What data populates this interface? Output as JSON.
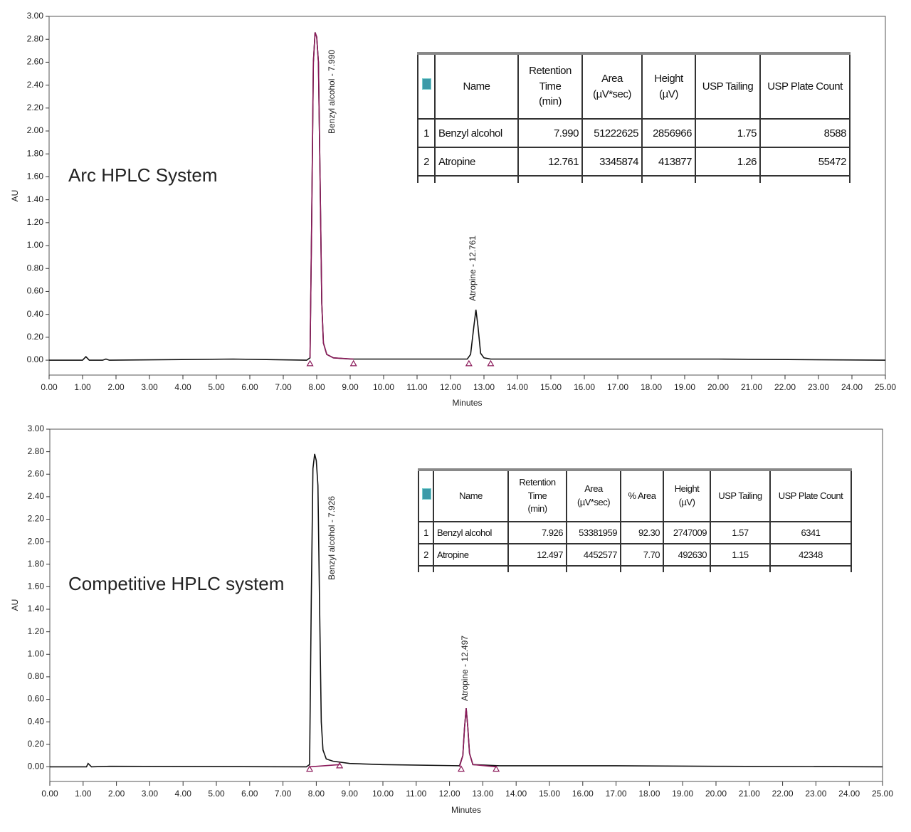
{
  "chart_data": [
    {
      "type": "line",
      "ylabel": "AU",
      "xlabel": "Minutes",
      "annotation": "Arc HPLC System",
      "xlim": [
        0,
        25
      ],
      "ylim": [
        -0.13,
        3.0
      ],
      "xticks": [
        {
          "value": 0,
          "label": "0.00"
        },
        {
          "value": 1,
          "label": "1.00"
        },
        {
          "value": 2,
          "label": "2.00"
        },
        {
          "value": 3,
          "label": "3.00"
        },
        {
          "value": 4,
          "label": "4.00"
        },
        {
          "value": 5,
          "label": "5.00"
        },
        {
          "value": 6,
          "label": "6.00"
        },
        {
          "value": 7,
          "label": "7.00"
        },
        {
          "value": 8,
          "label": "8.00"
        },
        {
          "value": 9,
          "label": "9.00"
        },
        {
          "value": 10,
          "label": "10.00"
        },
        {
          "value": 11,
          "label": "11.00"
        },
        {
          "value": 12,
          "label": "12.00"
        },
        {
          "value": 13,
          "label": "13.00"
        },
        {
          "value": 14,
          "label": "14.00"
        },
        {
          "value": 15,
          "label": "15.00"
        },
        {
          "value": 16,
          "label": "16.00"
        },
        {
          "value": 17,
          "label": "17.00"
        },
        {
          "value": 18,
          "label": "18.00"
        },
        {
          "value": 19,
          "label": "19.00"
        },
        {
          "value": 20,
          "label": "20.00"
        },
        {
          "value": 21,
          "label": "21.00"
        },
        {
          "value": 22,
          "label": "22.00"
        },
        {
          "value": 23,
          "label": "23.00"
        },
        {
          "value": 24,
          "label": "24.00"
        },
        {
          "value": 25,
          "label": "25.00"
        }
      ],
      "yticks": [
        {
          "value": 0,
          "label": "0.00"
        },
        {
          "value": 0.2,
          "label": "0.20"
        },
        {
          "value": 0.4,
          "label": "0.40"
        },
        {
          "value": 0.6,
          "label": "0.60"
        },
        {
          "value": 0.8,
          "label": "0.80"
        },
        {
          "value": 1,
          "label": "1.00"
        },
        {
          "value": 1.2,
          "label": "1.20"
        },
        {
          "value": 1.4,
          "label": "1.40"
        },
        {
          "value": 1.6,
          "label": "1.60"
        },
        {
          "value": 1.8,
          "label": "1.80"
        },
        {
          "value": 2,
          "label": "2.00"
        },
        {
          "value": 2.2,
          "label": "2.20"
        },
        {
          "value": 2.4,
          "label": "2.40"
        },
        {
          "value": 2.6,
          "label": "2.60"
        },
        {
          "value": 2.8,
          "label": "2.80"
        },
        {
          "value": 3,
          "label": "3.00"
        }
      ],
      "series": [
        {
          "color": "#111111",
          "x": [
            0,
            1.0,
            1.1,
            1.2,
            1.6,
            1.7,
            1.8,
            5.5,
            7.7,
            7.8,
            7.85,
            7.9,
            7.95,
            8.0,
            8.05,
            8.1,
            8.15,
            8.2,
            8.3,
            8.5,
            9.0,
            12.5,
            12.6,
            12.7,
            12.76,
            12.82,
            12.9,
            13.0,
            13.2,
            15.0,
            20.0,
            25.0
          ],
          "values": [
            0,
            0,
            0.03,
            0,
            0,
            0.01,
            0,
            0.01,
            0,
            0.02,
            1.2,
            2.6,
            2.86,
            2.82,
            2.6,
            1.6,
            0.5,
            0.15,
            0.05,
            0.02,
            0.01,
            0.01,
            0.05,
            0.3,
            0.44,
            0.3,
            0.06,
            0.02,
            0.01,
            0.01,
            0.01,
            0
          ]
        },
        {
          "color": "#8b1a5a",
          "x": [
            7.8,
            7.85,
            7.9,
            7.95,
            8.0,
            8.05,
            8.1,
            8.15,
            8.2,
            8.3,
            8.5,
            9.1
          ],
          "values": [
            0.02,
            1.2,
            2.6,
            2.86,
            2.82,
            2.6,
            1.6,
            0.5,
            0.15,
            0.05,
            0.02,
            0.01
          ]
        }
      ],
      "markers": {
        "color": "#8b1a5a",
        "x": [
          7.8,
          9.1,
          12.55,
          13.2
        ],
        "values": [
          -0.03,
          -0.03,
          -0.03,
          -0.03
        ]
      },
      "peak_labels": [
        "Benzyl alcohol - 7.990",
        "Atropine - 12.761"
      ],
      "table": {
        "columns": [
          [
            "Name"
          ],
          [
            "Retention",
            "Time",
            "(min)"
          ],
          [
            "Area",
            "(µV*sec)"
          ],
          [
            "Height",
            "(µV)"
          ],
          [
            "USP Tailing"
          ],
          [
            "USP Plate Count"
          ]
        ],
        "rows": [
          [
            "1",
            "Benzyl alcohol",
            "7.990",
            "51222625",
            "2856966",
            "1.75",
            "8588"
          ],
          [
            "2",
            "Atropine",
            "12.761",
            "3345874",
            "413877",
            "1.26",
            "55472"
          ]
        ]
      }
    },
    {
      "type": "line",
      "ylabel": "AU",
      "xlabel": "Minutes",
      "annotation": "Competitive HPLC system",
      "xlim": [
        0,
        25
      ],
      "ylim": [
        -0.13,
        3.0
      ],
      "xticks": [
        {
          "value": 0,
          "label": "0.00"
        },
        {
          "value": 1,
          "label": "1.00"
        },
        {
          "value": 2,
          "label": "2.00"
        },
        {
          "value": 3,
          "label": "3.00"
        },
        {
          "value": 4,
          "label": "4.00"
        },
        {
          "value": 5,
          "label": "5.00"
        },
        {
          "value": 6,
          "label": "6.00"
        },
        {
          "value": 7,
          "label": "7.00"
        },
        {
          "value": 8,
          "label": "8.00"
        },
        {
          "value": 9,
          "label": "9.00"
        },
        {
          "value": 10,
          "label": "10.00"
        },
        {
          "value": 11,
          "label": "11.00"
        },
        {
          "value": 12,
          "label": "12.00"
        },
        {
          "value": 13,
          "label": "13.00"
        },
        {
          "value": 14,
          "label": "14.00"
        },
        {
          "value": 15,
          "label": "15.00"
        },
        {
          "value": 16,
          "label": "16.00"
        },
        {
          "value": 17,
          "label": "17.00"
        },
        {
          "value": 18,
          "label": "18.00"
        },
        {
          "value": 19,
          "label": "19.00"
        },
        {
          "value": 20,
          "label": "20.00"
        },
        {
          "value": 21,
          "label": "21.00"
        },
        {
          "value": 22,
          "label": "22.00"
        },
        {
          "value": 23,
          "label": "23.00"
        },
        {
          "value": 24,
          "label": "24.00"
        },
        {
          "value": 25,
          "label": "25.00"
        }
      ],
      "yticks": [
        {
          "value": 0,
          "label": "0.00"
        },
        {
          "value": 0.2,
          "label": "0.20"
        },
        {
          "value": 0.4,
          "label": "0.40"
        },
        {
          "value": 0.6,
          "label": "0.60"
        },
        {
          "value": 0.8,
          "label": "0.80"
        },
        {
          "value": 1,
          "label": "1.00"
        },
        {
          "value": 1.2,
          "label": "1.20"
        },
        {
          "value": 1.4,
          "label": "1.40"
        },
        {
          "value": 1.6,
          "label": "1.60"
        },
        {
          "value": 1.8,
          "label": "1.80"
        },
        {
          "value": 2,
          "label": "2.00"
        },
        {
          "value": 2.2,
          "label": "2.20"
        },
        {
          "value": 2.4,
          "label": "2.40"
        },
        {
          "value": 2.6,
          "label": "2.60"
        },
        {
          "value": 2.8,
          "label": "2.80"
        },
        {
          "value": 3,
          "label": "3.00"
        }
      ],
      "series": [
        {
          "color": "#111111",
          "x": [
            0,
            1.1,
            1.15,
            1.25,
            1.8,
            7.7,
            7.8,
            7.85,
            7.9,
            7.95,
            8.0,
            8.05,
            8.1,
            8.15,
            8.2,
            8.3,
            8.5,
            9.0,
            10.0,
            12.3,
            12.4,
            12.45,
            12.5,
            12.55,
            12.6,
            12.7,
            13.5,
            17.0,
            20.0,
            25.0
          ],
          "values": [
            0,
            0,
            0.03,
            0,
            0.005,
            0,
            0.02,
            1.5,
            2.65,
            2.78,
            2.72,
            2.5,
            1.4,
            0.4,
            0.15,
            0.07,
            0.05,
            0.03,
            0.02,
            0.01,
            0.1,
            0.35,
            0.52,
            0.35,
            0.12,
            0.02,
            0.01,
            0.01,
            0.005,
            0
          ]
        },
        {
          "color": "#8b1a5a",
          "x": [
            12.3,
            12.4,
            12.45,
            12.5,
            12.55,
            12.6,
            12.7,
            13.4
          ],
          "values": [
            0.0,
            0.1,
            0.35,
            0.52,
            0.35,
            0.12,
            0.02,
            0.0
          ]
        },
        {
          "color": "#8b1a5a",
          "x": [
            7.8,
            8.7
          ],
          "values": [
            0.0,
            0.02
          ]
        }
      ],
      "markers": {
        "color": "#8b1a5a",
        "x": [
          7.8,
          8.7,
          12.35,
          13.4
        ],
        "values": [
          -0.02,
          0.01,
          -0.02,
          -0.02
        ]
      },
      "peak_labels": [
        "Benzyl alcohol - 7.926",
        "Atropine - 12.497"
      ],
      "table": {
        "columns": [
          [
            "Name"
          ],
          [
            "Retention",
            "Time",
            "(min)"
          ],
          [
            "Area",
            "(µV*sec)"
          ],
          [
            "% Area"
          ],
          [
            "Height",
            "(µV)"
          ],
          [
            "USP Tailing"
          ],
          [
            "USP Plate Count"
          ]
        ],
        "rows": [
          [
            "1",
            "Benzyl alcohol",
            "7.926",
            "53381959",
            "92.30",
            "2747009",
            "1.57",
            "6341"
          ],
          [
            "2",
            "Atropine",
            "12.497",
            "4452577",
            "7.70",
            "492630",
            "1.15",
            "42348"
          ]
        ]
      }
    }
  ]
}
